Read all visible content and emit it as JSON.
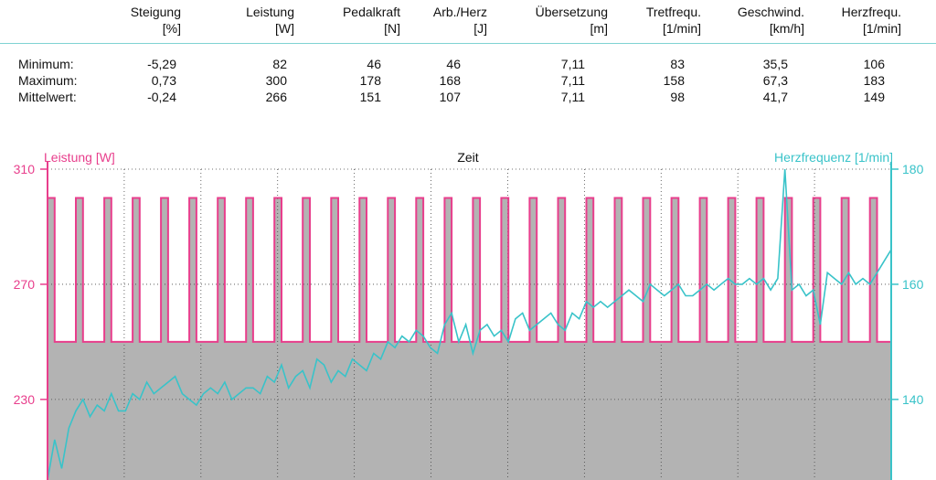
{
  "table": {
    "columns": [
      {
        "name": "Steigung",
        "unit": "[%]"
      },
      {
        "name": "Leistung",
        "unit": "[W]"
      },
      {
        "name": "Pedalkraft",
        "unit": "[N]"
      },
      {
        "name": "Arb./Herz",
        "unit": "[J]"
      },
      {
        "name": "Übersetzung",
        "unit": "[m]"
      },
      {
        "name": "Tretfrequ.",
        "unit": "[1/min]"
      },
      {
        "name": "Geschwind.",
        "unit": "[km/h]"
      },
      {
        "name": "Herzfrequ.",
        "unit": "[1/min]"
      }
    ],
    "rows": [
      {
        "label": "Minimum:",
        "values": [
          "-5,29",
          "82",
          "46",
          "46",
          "7,11",
          "83",
          "35,5",
          "106"
        ]
      },
      {
        "label": "Maximum:",
        "values": [
          "0,73",
          "300",
          "178",
          "168",
          "7,11",
          "158",
          "67,3",
          "183"
        ]
      },
      {
        "label": "Mittelwert:",
        "values": [
          "-0,24",
          "266",
          "151",
          "107",
          "7,11",
          "98",
          "41,7",
          "149"
        ]
      }
    ]
  },
  "chart_data": {
    "type": "line",
    "xlabel": "Zeit",
    "colors": {
      "power": "#e83e8c",
      "heart": "#39c3c9",
      "fill": "#b3b3b3",
      "grid": "#444444"
    },
    "left_axis": {
      "label": "Leistung [W]",
      "ticks": [
        230,
        270,
        310
      ],
      "range": [
        202,
        310
      ]
    },
    "right_axis": {
      "label": "Herzfrequenz [1/min]",
      "ticks": [
        140,
        160,
        180
      ],
      "range": [
        126,
        180
      ]
    },
    "series": [
      {
        "name": "Leistung [W]",
        "axis": "left",
        "high": 300,
        "low": 250,
        "high_intervals": [
          [
            0,
            1
          ],
          [
            4,
            5
          ],
          [
            8,
            9
          ],
          [
            12,
            13
          ],
          [
            16,
            17
          ],
          [
            20,
            21
          ],
          [
            24,
            25
          ],
          [
            28,
            29
          ],
          [
            32,
            33
          ],
          [
            36,
            37
          ],
          [
            40,
            41
          ],
          [
            44,
            45
          ],
          [
            48,
            49
          ],
          [
            52,
            53
          ],
          [
            56,
            57
          ],
          [
            60,
            61
          ],
          [
            64,
            65
          ],
          [
            68,
            69
          ],
          [
            72,
            73
          ],
          [
            76,
            77
          ],
          [
            80,
            81
          ],
          [
            84,
            85
          ],
          [
            88,
            89
          ],
          [
            92,
            93
          ],
          [
            96,
            97
          ],
          [
            100,
            101
          ],
          [
            104,
            105
          ],
          [
            108,
            109
          ],
          [
            112,
            113
          ],
          [
            116,
            117
          ]
        ],
        "x_max": 119
      },
      {
        "name": "Herzfrequenz [1/min]",
        "axis": "right",
        "x": [
          0,
          1,
          2,
          3,
          4,
          5,
          6,
          7,
          8,
          9,
          10,
          11,
          12,
          13,
          14,
          15,
          16,
          17,
          18,
          19,
          20,
          21,
          22,
          23,
          24,
          25,
          26,
          27,
          28,
          29,
          30,
          31,
          32,
          33,
          34,
          35,
          36,
          37,
          38,
          39,
          40,
          41,
          42,
          43,
          44,
          45,
          46,
          47,
          48,
          49,
          50,
          51,
          52,
          53,
          54,
          55,
          56,
          57,
          58,
          59,
          60,
          61,
          62,
          63,
          64,
          65,
          66,
          67,
          68,
          69,
          70,
          71,
          72,
          73,
          74,
          75,
          76,
          77,
          78,
          79,
          80,
          81,
          82,
          83,
          84,
          85,
          86,
          87,
          88,
          89,
          90,
          91,
          92,
          93,
          94,
          95,
          96,
          97,
          98,
          99,
          100,
          101,
          102,
          103,
          104,
          105,
          106,
          107,
          108,
          109,
          110,
          111,
          112,
          113,
          114,
          115,
          116,
          117,
          118,
          119
        ],
        "y": [
          126,
          133,
          128,
          135,
          138,
          140,
          137,
          139,
          138,
          141,
          138,
          138,
          141,
          140,
          143,
          141,
          142,
          143,
          144,
          141,
          140,
          139,
          141,
          142,
          141,
          143,
          140,
          141,
          142,
          142,
          141,
          144,
          143,
          146,
          142,
          144,
          145,
          142,
          147,
          146,
          143,
          145,
          144,
          147,
          146,
          145,
          148,
          147,
          150,
          149,
          151,
          150,
          152,
          151,
          149,
          148,
          153,
          155,
          150,
          153,
          148,
          152,
          153,
          151,
          152,
          150,
          154,
          155,
          152,
          153,
          154,
          155,
          153,
          152,
          155,
          154,
          157,
          156,
          157,
          156,
          157,
          158,
          159,
          158,
          157,
          160,
          159,
          158,
          159,
          160,
          158,
          158,
          159,
          160,
          159,
          160,
          161,
          160,
          160,
          161,
          160,
          161,
          159,
          161,
          180,
          159,
          160,
          158,
          159,
          153,
          162,
          161,
          160,
          162,
          160,
          161,
          160,
          162,
          164,
          166
        ]
      }
    ]
  }
}
